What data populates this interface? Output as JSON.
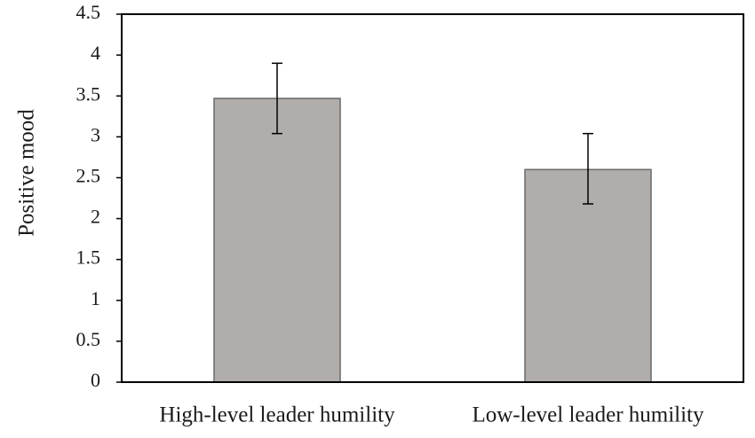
{
  "chart_data": {
    "type": "bar",
    "title": "",
    "xlabel": "",
    "ylabel": "Positive mood",
    "categories": [
      "High-level leader humility",
      "Low-level leader humility"
    ],
    "values": [
      3.47,
      2.6
    ],
    "error_bars": {
      "upper": [
        3.9,
        3.04
      ],
      "lower": [
        3.04,
        2.18
      ]
    },
    "ylim": [
      0,
      4.5
    ],
    "yticks": [
      "0",
      "0.5",
      "1",
      "1.5",
      "2",
      "2.5",
      "3",
      "3.5",
      "4",
      "4.5"
    ],
    "grid": false,
    "legend": "none",
    "colors": {
      "bar_fill": "#b0adab",
      "bar_stroke": "#6a6a6a",
      "axis": "#000000",
      "error_bar": "#000000"
    }
  }
}
